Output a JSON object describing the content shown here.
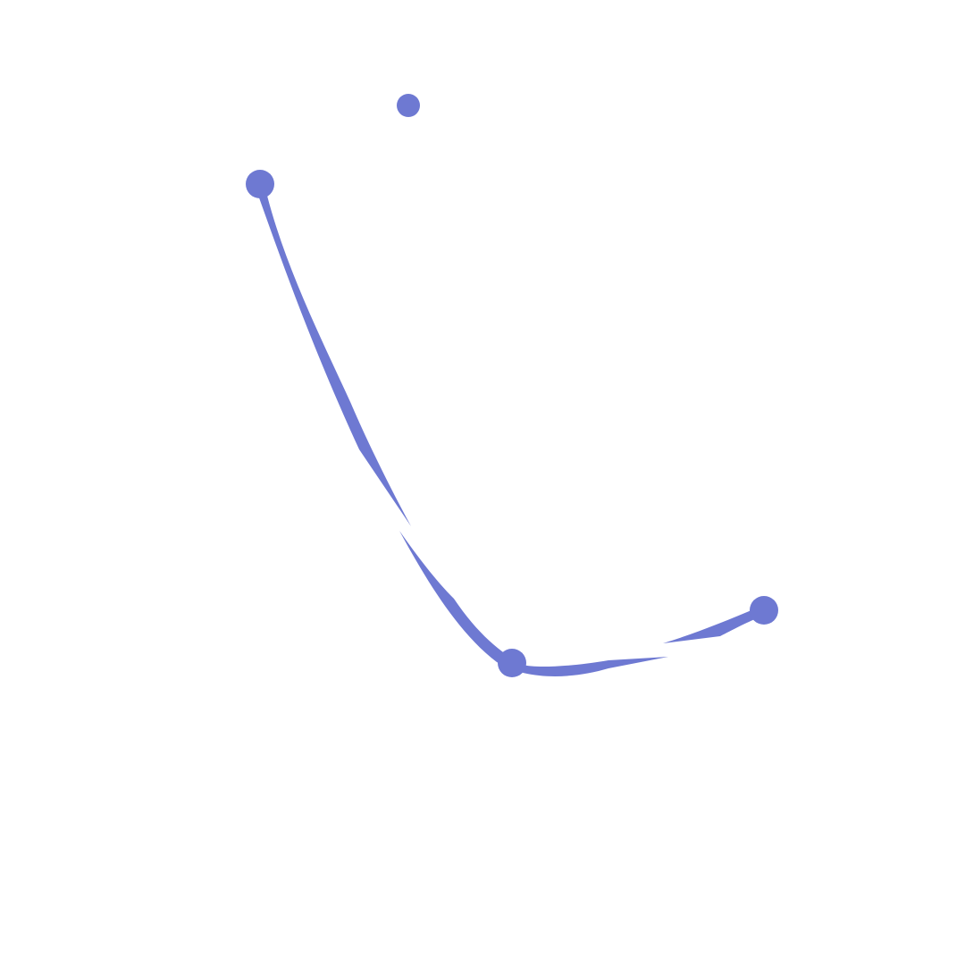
{
  "canvas": {
    "background": "#ffffff"
  },
  "style": {
    "accent": "#6e79d2"
  }
}
